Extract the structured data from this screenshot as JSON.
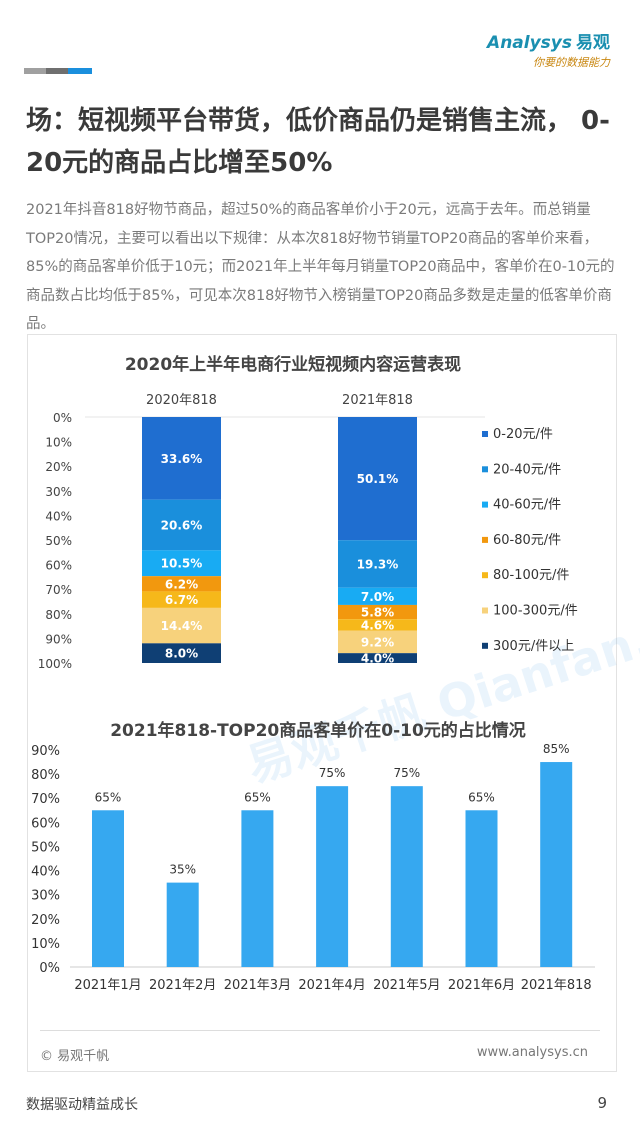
{
  "header": {
    "logo_en": "Analysys",
    "logo_cn": "易观",
    "logo_tagline": "你要的数据能力",
    "deco_colors": [
      "#a0a0a0",
      "#6f6f6f",
      "#1a8fdd"
    ]
  },
  "title": "场：短视频平台带货，低价商品仍是销售主流， 0-20元的商品占比增至50%",
  "description": "2021年抖音818好物节商品，超过50%的商品客单价小于20元，远高于去年。而总销量TOP20情况，主要可以看出以下规律：从本次818好物节销量TOP20商品的客单价来看，85%的商品客单价低于10元；而2021年上半年每月销量TOP20商品中，客单价在0-10元的商品数占比均低于85%，可见本次818好物节入榜销量TOP20商品多数是走量的低客单价商品。",
  "watermark": "易观千帆 Qianfan.analysys.cn",
  "chart_data": [
    {
      "type": "bar",
      "stacked": true,
      "title": "2020年上半年电商行业短视频内容运营表现",
      "categories": [
        "2020年818",
        "2021年818"
      ],
      "yticks": [
        "0%",
        "10%",
        "20%",
        "30%",
        "40%",
        "50%",
        "60%",
        "70%",
        "80%",
        "90%",
        "100%"
      ],
      "ylim": [
        0,
        100
      ],
      "y_inverted": true,
      "legend_position": "right",
      "series": [
        {
          "name": "0-20元/件",
          "values": [
            33.6,
            50.1
          ],
          "labels": [
            "33.6%",
            "50.1%"
          ],
          "color": "#1f6ed0"
        },
        {
          "name": "20-40元/件",
          "values": [
            20.6,
            19.3
          ],
          "labels": [
            "20.6%",
            "19.3%"
          ],
          "color": "#1a8fdc"
        },
        {
          "name": "40-60元/件",
          "values": [
            10.5,
            7.0
          ],
          "labels": [
            "10.5%",
            "7.0%"
          ],
          "color": "#18abf3"
        },
        {
          "name": "60-80元/件",
          "values": [
            6.2,
            5.8
          ],
          "labels": [
            "6.2%",
            "5.8%"
          ],
          "color": "#f2980e"
        },
        {
          "name": "80-100元/件",
          "values": [
            6.7,
            4.6
          ],
          "labels": [
            "6.7%",
            "4.6%"
          ],
          "color": "#f6b81a"
        },
        {
          "name": "100-300元/件",
          "values": [
            14.4,
            9.2
          ],
          "labels": [
            "14.4%",
            "9.2%"
          ],
          "color": "#f7d27c"
        },
        {
          "name": "300元/件以上",
          "values": [
            8.0,
            4.0
          ],
          "labels": [
            "8.0%",
            "4.0%"
          ],
          "color": "#0f3f74"
        }
      ]
    },
    {
      "type": "bar",
      "title": "2021年818-TOP20商品客单价在0-10元的占比情况",
      "categories": [
        "2021年1月",
        "2021年2月",
        "2021年3月",
        "2021年4月",
        "2021年5月",
        "2021年6月",
        "2021年818"
      ],
      "values": [
        65,
        35,
        65,
        75,
        75,
        65,
        85
      ],
      "labels": [
        "65%",
        "35%",
        "65%",
        "75%",
        "75%",
        "65%",
        "85%"
      ],
      "yticks": [
        "0%",
        "10%",
        "20%",
        "30%",
        "40%",
        "50%",
        "60%",
        "70%",
        "80%",
        "90%"
      ],
      "ylim": [
        0,
        90
      ],
      "color": "#36a8f0"
    }
  ],
  "footer": {
    "source": "© 易观千帆",
    "site": "www.analysys.cn",
    "tagline": "数据驱动精益成长",
    "page": "9"
  }
}
